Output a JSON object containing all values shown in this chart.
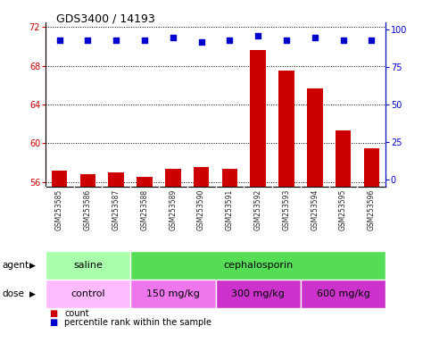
{
  "title": "GDS3400 / 14193",
  "samples": [
    "GSM253585",
    "GSM253586",
    "GSM253587",
    "GSM253588",
    "GSM253589",
    "GSM253590",
    "GSM253591",
    "GSM253592",
    "GSM253593",
    "GSM253594",
    "GSM253595",
    "GSM253596"
  ],
  "counts": [
    57.2,
    56.8,
    57.0,
    56.5,
    57.4,
    57.6,
    57.35,
    69.6,
    67.5,
    65.7,
    61.3,
    59.5
  ],
  "percentile_ranks": [
    93,
    93,
    93,
    93,
    95,
    92,
    93,
    96,
    93,
    95,
    93,
    93
  ],
  "ylim_left": [
    55.5,
    72.5
  ],
  "yticks_left": [
    56,
    60,
    64,
    68,
    72
  ],
  "ylim_right": [
    -5.25,
    105
  ],
  "yticks_right": [
    0,
    25,
    50,
    75,
    100
  ],
  "bar_color": "#cc0000",
  "dot_color": "#0000cc",
  "agent_groups": [
    {
      "label": "saline",
      "start": 0,
      "end": 3,
      "color": "#aaffaa"
    },
    {
      "label": "cephalosporin",
      "start": 3,
      "end": 12,
      "color": "#55dd55"
    }
  ],
  "dose_groups": [
    {
      "label": "control",
      "start": 0,
      "end": 3,
      "color": "#ffbbff"
    },
    {
      "label": "150 mg/kg",
      "start": 3,
      "end": 6,
      "color": "#ee66ee"
    },
    {
      "label": "300 mg/kg",
      "start": 6,
      "end": 9,
      "color": "#dd44dd"
    },
    {
      "label": "600 mg/kg",
      "start": 9,
      "end": 12,
      "color": "#dd44dd"
    }
  ],
  "left_axis_color": "#cc0000",
  "right_axis_color": "#0000cc",
  "background_color": "#ffffff",
  "plot_bg_color": "#ffffff",
  "label_bg_color": "#cccccc"
}
